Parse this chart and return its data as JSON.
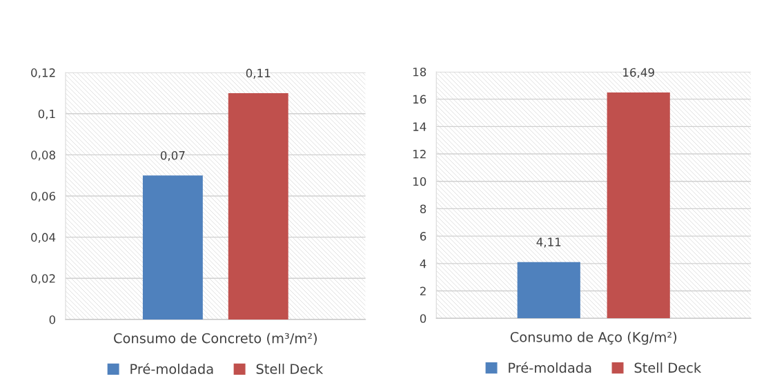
{
  "chart_data": [
    {
      "type": "bar",
      "categories": [
        "Consumo de Concreto (m³/m²)"
      ],
      "series": [
        {
          "name": "Pré-moldada",
          "color": "#4f81bd",
          "values": [
            0.07
          ]
        },
        {
          "name": "Stell Deck",
          "color": "#c0504d",
          "values": [
            0.11
          ]
        }
      ],
      "ylim": [
        0,
        0.12
      ],
      "yticks": [
        {
          "value": 0,
          "label": "0"
        },
        {
          "value": 0.02,
          "label": "0,02"
        },
        {
          "value": 0.04,
          "label": "0,04"
        },
        {
          "value": 0.06,
          "label": "0,06"
        },
        {
          "value": 0.08,
          "label": "0,08"
        },
        {
          "value": 0.1,
          "label": "0,1"
        },
        {
          "value": 0.12,
          "label": "0,12"
        }
      ],
      "value_labels": [
        [
          "0,07"
        ],
        [
          "0,11"
        ]
      ],
      "grid": "y",
      "legend": "bottom"
    },
    {
      "type": "bar",
      "categories": [
        "Consumo de Aço (Kg/m²)"
      ],
      "series": [
        {
          "name": "Pré-moldada",
          "color": "#4f81bd",
          "values": [
            4.11
          ]
        },
        {
          "name": "Stell Deck",
          "color": "#c0504d",
          "values": [
            16.49
          ]
        }
      ],
      "ylim": [
        0,
        18
      ],
      "yticks": [
        0,
        2,
        4,
        6,
        8,
        10,
        12,
        14,
        16,
        18
      ],
      "value_labels": [
        [
          "4,11"
        ],
        [
          "16,49"
        ]
      ],
      "grid": "y",
      "legend": "bottom"
    }
  ]
}
